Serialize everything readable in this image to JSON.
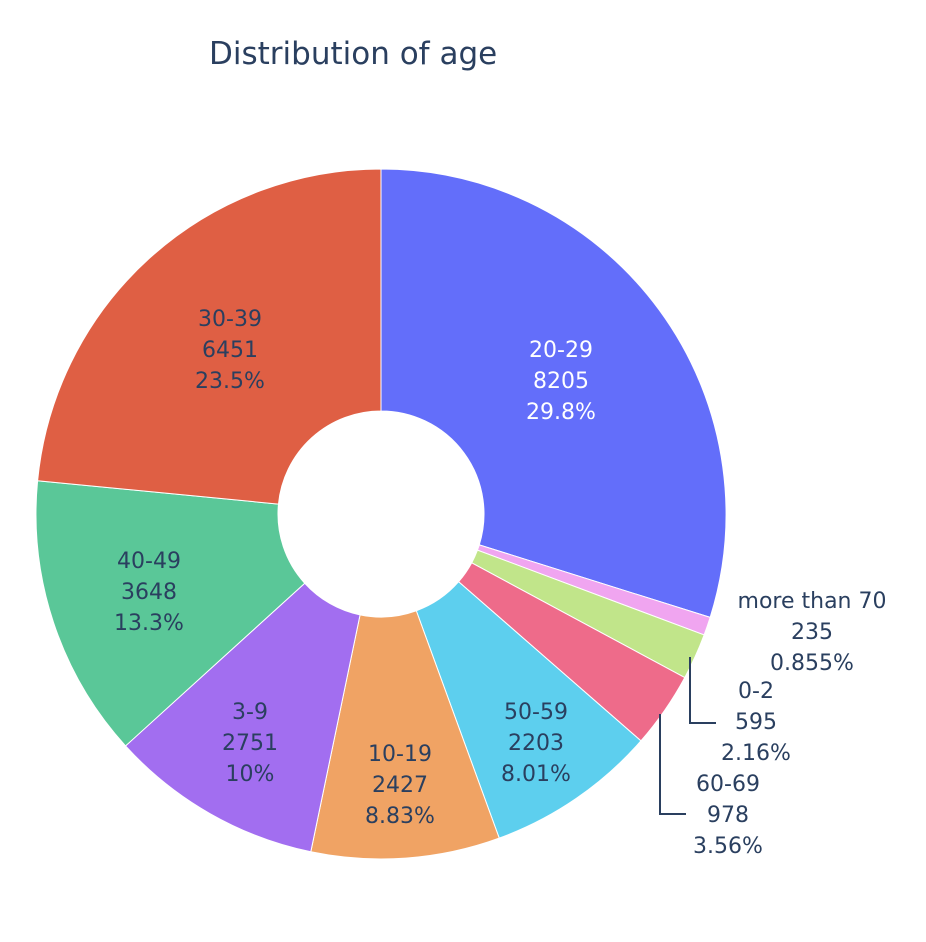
{
  "chart_data": {
    "type": "pie",
    "title": "Distribution of age",
    "hole": true,
    "slices": [
      {
        "label": "20-29",
        "value": 8205,
        "percent": "29.8%",
        "color": "#636efa",
        "text_color": "#ffffff"
      },
      {
        "label": "more than 70",
        "value": 235,
        "percent": "0.855%",
        "color": "#f0a5f0",
        "text_color": "#2a3f5f"
      },
      {
        "label": "0-2",
        "value": 595,
        "percent": "2.16%",
        "color": "#c1e58a",
        "text_color": "#2a3f5f"
      },
      {
        "label": "60-69",
        "value": 978,
        "percent": "3.56%",
        "color": "#ee6b8a",
        "text_color": "#2a3f5f"
      },
      {
        "label": "50-59",
        "value": 2203,
        "percent": "8.01%",
        "color": "#5dcfee",
        "text_color": "#2a3f5f"
      },
      {
        "label": "10-19",
        "value": 2427,
        "percent": "8.83%",
        "color": "#f0a364",
        "text_color": "#2a3f5f"
      },
      {
        "label": "3-9",
        "value": 2751,
        "percent": "10%",
        "color": "#a26ef0",
        "text_color": "#2a3f5f"
      },
      {
        "label": "40-49",
        "value": 3648,
        "percent": "13.3%",
        "color": "#5ac798",
        "text_color": "#2a3f5f"
      },
      {
        "label": "30-39",
        "value": 6451,
        "percent": "23.5%",
        "color": "#df5f44",
        "text_color": "#2a3f5f"
      }
    ]
  }
}
